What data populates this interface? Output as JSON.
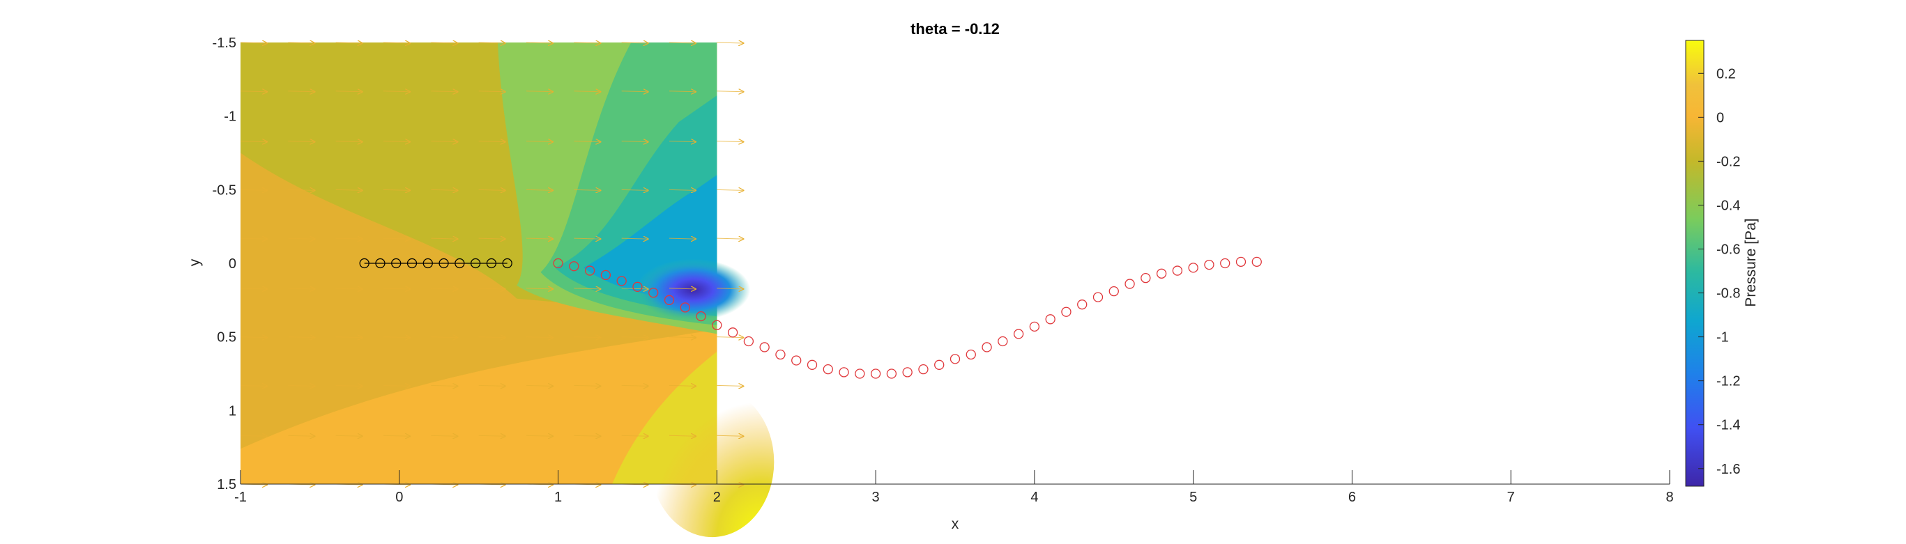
{
  "chart_data": {
    "type": "contour",
    "title": "theta = -0.12",
    "xlabel": "x",
    "ylabel": "y",
    "xlim": [
      -1,
      8
    ],
    "ylim": [
      -1.5,
      1.5
    ],
    "y_axis_direction": "reverse",
    "x_ticks": [
      -1,
      0,
      1,
      2,
      3,
      4,
      5,
      6,
      7,
      8
    ],
    "y_ticks": [
      -1.5,
      -1,
      -0.5,
      0,
      0.5,
      1,
      1.5
    ],
    "contour_field": {
      "quantity": "Pressure [Pa]",
      "x_range": [
        -1,
        2
      ],
      "y_range": [
        -1.5,
        1.5
      ]
    },
    "colorbar": {
      "label": "Pressure [Pa]",
      "range": [
        -1.68,
        0.35
      ],
      "ticks": [
        0.2,
        0,
        -0.2,
        -0.4,
        -0.6,
        -0.8,
        -1,
        -1.2,
        -1.4,
        -1.6
      ],
      "colormap": "parula"
    },
    "body_points": {
      "color": "#000000",
      "x": [
        -0.22,
        -0.12,
        -0.02,
        0.08,
        0.18,
        0.28,
        0.38,
        0.48,
        0.58,
        0.68
      ],
      "y": [
        0,
        0,
        0,
        0,
        0,
        0,
        0,
        0,
        0,
        0
      ]
    },
    "wake_points": {
      "color": "#e0383c",
      "x": [
        1.0,
        1.1,
        1.2,
        1.3,
        1.4,
        1.5,
        1.6,
        1.7,
        1.8,
        1.9,
        2.0,
        2.1,
        2.2,
        2.3,
        2.4,
        2.5,
        2.6,
        2.7,
        2.8,
        2.9,
        3.0,
        3.1,
        3.2,
        3.3,
        3.4,
        3.5,
        3.6,
        3.7,
        3.8,
        3.9,
        4.0,
        4.1,
        4.2,
        4.3,
        4.4,
        4.5,
        4.6,
        4.7,
        4.8,
        4.9,
        5.0,
        5.1,
        5.2,
        5.3,
        5.4
      ],
      "y": [
        0.0,
        0.02,
        0.05,
        0.08,
        0.12,
        0.16,
        0.2,
        0.25,
        0.3,
        0.36,
        0.42,
        0.47,
        0.53,
        0.57,
        0.62,
        0.66,
        0.69,
        0.72,
        0.74,
        0.75,
        0.75,
        0.75,
        0.74,
        0.72,
        0.69,
        0.65,
        0.62,
        0.57,
        0.53,
        0.48,
        0.43,
        0.38,
        0.33,
        0.28,
        0.23,
        0.19,
        0.14,
        0.1,
        0.07,
        0.05,
        0.03,
        0.01,
        0.0,
        -0.01,
        -0.01
      ]
    },
    "velocity_vectors": {
      "color": "#e8b030",
      "columns_x": [
        -1.0,
        -0.7,
        -0.4,
        -0.1,
        0.2,
        0.5,
        0.8,
        1.1,
        1.4,
        1.7,
        2.0
      ],
      "rows_y": [
        -1.5,
        -1.17,
        -0.83,
        -0.5,
        -0.17,
        0.17,
        0.5,
        0.83,
        1.17,
        1.5
      ]
    }
  }
}
